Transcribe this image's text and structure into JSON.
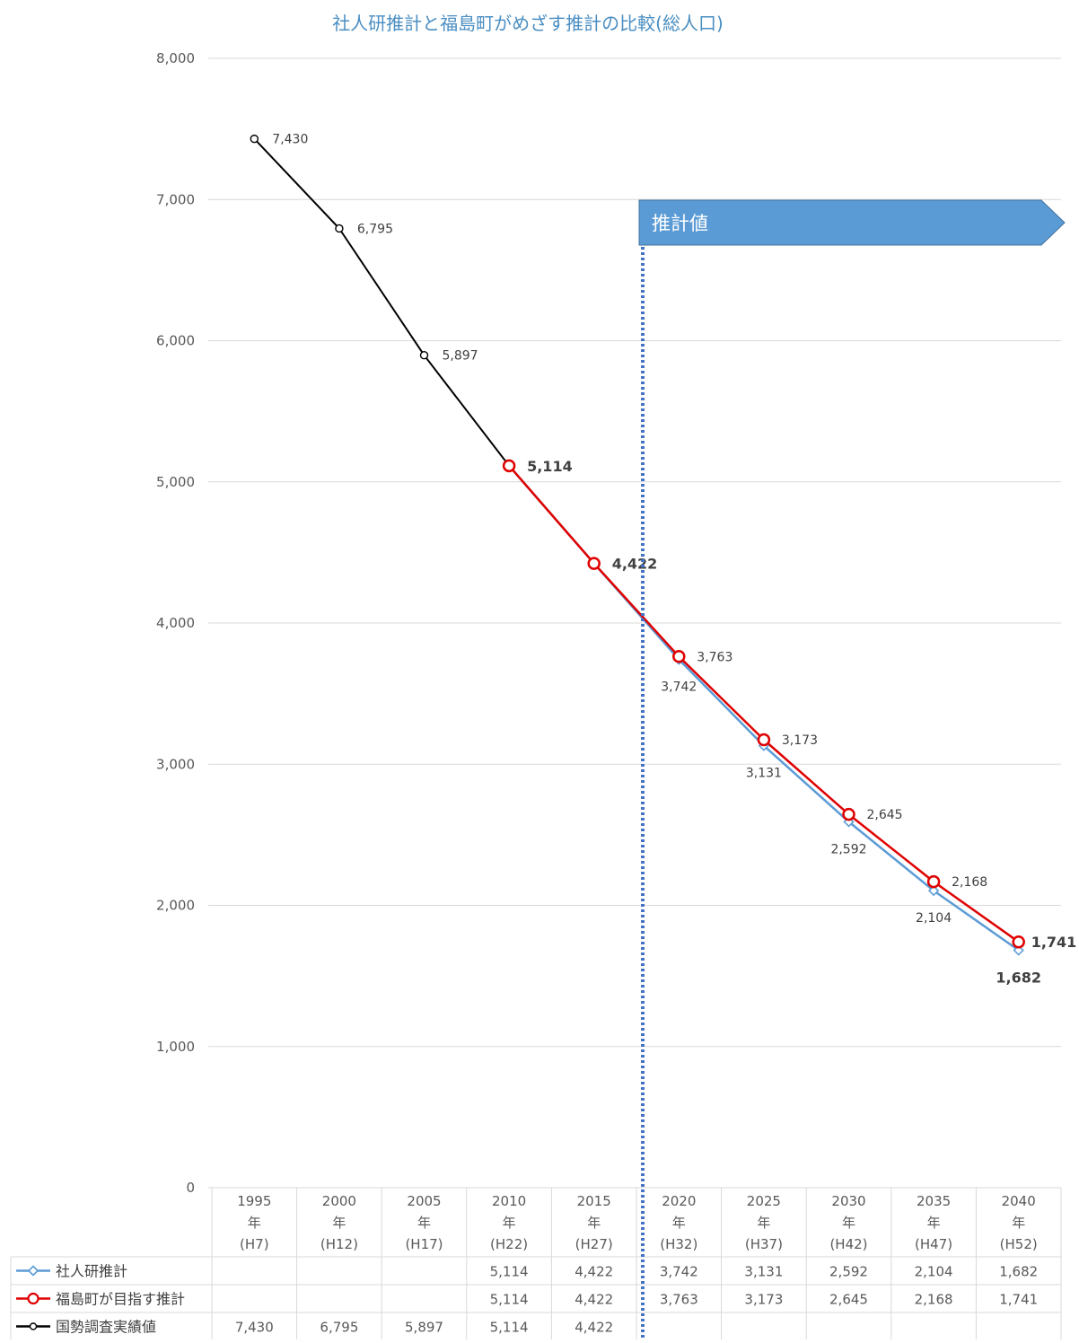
{
  "chart_data": {
    "type": "line",
    "title": "社人研推計と福島町がめざす推計の比較(総人口)",
    "categories": [
      [
        "1995",
        "年",
        "(H7)"
      ],
      [
        "2000",
        "年",
        "(H12)"
      ],
      [
        "2005",
        "年",
        "(H17)"
      ],
      [
        "2010",
        "年",
        "(H22)"
      ],
      [
        "2015",
        "年",
        "(H27)"
      ],
      [
        "2020",
        "年",
        "(H32)"
      ],
      [
        "2025",
        "年",
        "(H37)"
      ],
      [
        "2030",
        "年",
        "(H42)"
      ],
      [
        "2035",
        "年",
        "(H47)"
      ],
      [
        "2040",
        "年",
        "(H52)"
      ]
    ],
    "ylim": [
      0,
      8000
    ],
    "yticks": [
      0,
      1000,
      2000,
      3000,
      4000,
      5000,
      6000,
      7000,
      8000
    ],
    "ytick_labels": [
      "0",
      "1,000",
      "2,000",
      "3,000",
      "4,000",
      "5,000",
      "6,000",
      "7,000",
      "8,000"
    ],
    "grid": true,
    "series": [
      {
        "name": "社人研推計",
        "color": "#5b9bd5",
        "marker": "diamond",
        "values": [
          null,
          null,
          null,
          5114,
          4422,
          3742,
          3131,
          2592,
          2104,
          1682
        ],
        "labels": [
          "",
          "",
          "",
          "5,114",
          "4,422",
          "3,742",
          "3,131",
          "2,592",
          "2,104",
          "1,682"
        ]
      },
      {
        "name": "福島町が目指す推計",
        "color": "#e00000",
        "marker": "circle",
        "values": [
          null,
          null,
          null,
          5114,
          4422,
          3763,
          3173,
          2645,
          2168,
          1741
        ],
        "labels": [
          "",
          "",
          "",
          "5,114",
          "4,422",
          "3,763",
          "3,173",
          "2,645",
          "2,168",
          "1,741"
        ]
      },
      {
        "name": "国勢調査実績値",
        "color": "#000000",
        "marker": "circle",
        "values": [
          7430,
          6795,
          5897,
          5114,
          4422,
          null,
          null,
          null,
          null,
          null
        ],
        "labels": [
          "7,430",
          "6,795",
          "5,897",
          "5,114",
          "4,422",
          "",
          "",
          "",
          "",
          ""
        ]
      }
    ],
    "callout": {
      "text": "推計値",
      "color": "#5b9bd5"
    },
    "divider": {
      "between": [
        "2015",
        "2020"
      ],
      "style": "dotted",
      "color": "#4472c4"
    }
  }
}
